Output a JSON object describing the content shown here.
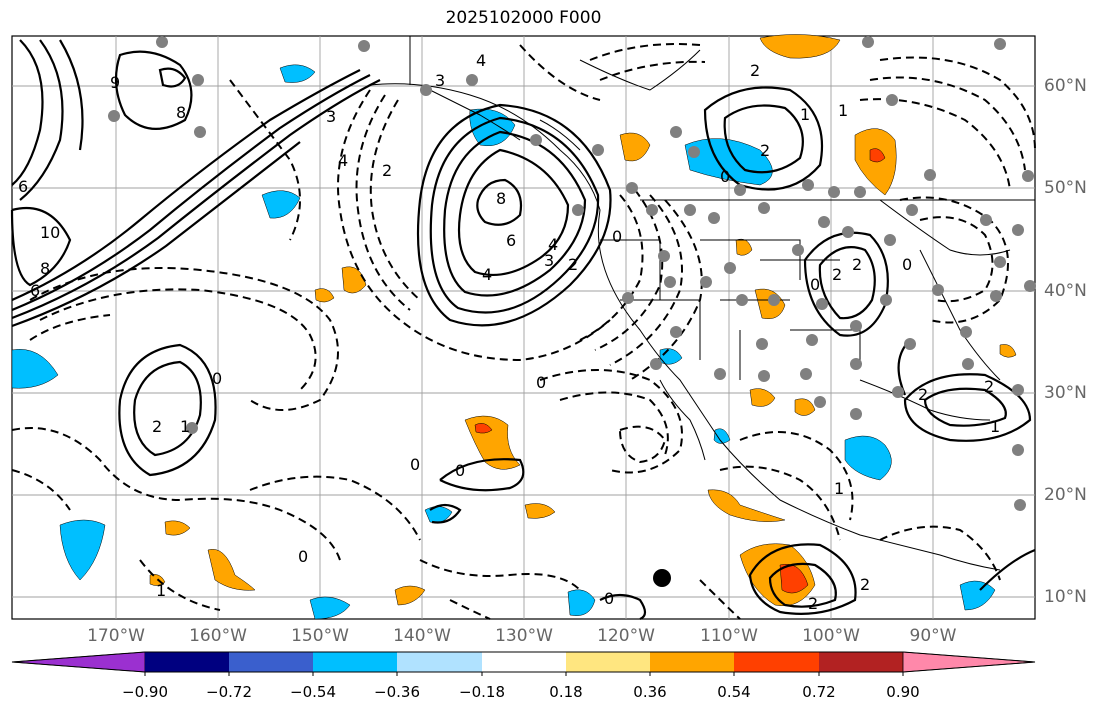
{
  "title": "2025102000 F000",
  "lon_labels": [
    "170°W",
    "160°W",
    "150°W",
    "140°W",
    "130°W",
    "120°W",
    "110°W",
    "100°W",
    "90°W"
  ],
  "lat_labels": [
    "60°N",
    "50°N",
    "40°N",
    "30°N",
    "20°N",
    "10°N"
  ],
  "colorbar": {
    "ticks": [
      "−0.90",
      "−0.72",
      "−0.54",
      "−0.36",
      "−0.18",
      "0.18",
      "0.36",
      "0.54",
      "0.72",
      "0.90"
    ],
    "colors": [
      "#9b30d0",
      "#000080",
      "#3a5fcd",
      "#00bfff",
      "#b0e2ff",
      "#ffffff",
      "#ffe680",
      "#ffa500",
      "#ff4000",
      "#b22222",
      "#ff88aa"
    ]
  },
  "contour_labels": [
    {
      "text": "4"
    },
    {
      "text": "3"
    },
    {
      "text": "2"
    },
    {
      "text": "9"
    },
    {
      "text": "8"
    },
    {
      "text": "6"
    },
    {
      "text": "10"
    },
    {
      "text": "8"
    },
    {
      "text": "6"
    },
    {
      "text": "4"
    },
    {
      "text": "3"
    },
    {
      "text": "2"
    },
    {
      "text": "6"
    },
    {
      "text": "8"
    },
    {
      "text": "4"
    },
    {
      "text": "4"
    },
    {
      "text": "3"
    },
    {
      "text": "2"
    },
    {
      "text": "0"
    },
    {
      "text": "0"
    },
    {
      "text": "2"
    },
    {
      "text": "1"
    },
    {
      "text": "0"
    },
    {
      "text": "0"
    },
    {
      "text": "0"
    },
    {
      "text": "0"
    },
    {
      "text": "1"
    },
    {
      "text": "2"
    },
    {
      "text": "0"
    },
    {
      "text": "0"
    },
    {
      "text": "2"
    },
    {
      "text": "2"
    },
    {
      "text": "1"
    },
    {
      "text": "1"
    },
    {
      "text": "2"
    },
    {
      "text": "0"
    },
    {
      "text": "2"
    },
    {
      "text": "1"
    },
    {
      "text": "2"
    },
    {
      "text": "2"
    },
    {
      "text": "1"
    },
    {
      "text": "0"
    }
  ],
  "colors": {
    "grid": "#a0a0a0",
    "contour": "#000000",
    "dots": "#808080",
    "label_text": "#666666"
  }
}
